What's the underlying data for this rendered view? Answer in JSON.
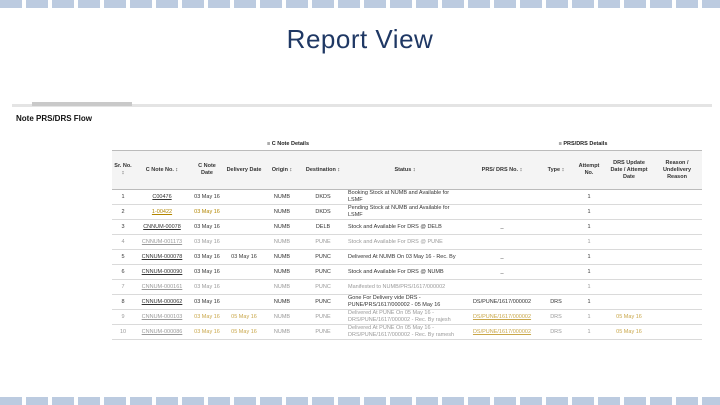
{
  "slide": {
    "title": "Report View"
  },
  "panel": {
    "title": "Note PRS/DRS Flow"
  },
  "groups": {
    "cnote": "C Note Details",
    "prs": "PRS/DRS Details"
  },
  "columns": [
    "Sr. No. ↕",
    "C Note No. ↕",
    "C Note Date",
    "Delivery Date",
    "Origin ↕",
    "Destination ↕",
    "Status ↕",
    "PRS/ DRS No. ↕",
    "Type ↕",
    "Attempt No.",
    "DRS Update Date / Attempt Date",
    "Reason / Undelivery Reason"
  ],
  "rows": [
    {
      "sr": "1",
      "cn": "C00476",
      "cdate": "03 May 16",
      "ddate": "",
      "origin": "NUMB",
      "dest": "DKDS",
      "status": "Booking Stock at NUMB and Available for LSMF",
      "prs": "",
      "type": "",
      "att": "1",
      "upd": "",
      "reason": ""
    },
    {
      "sr": "2",
      "cn": "1-00422",
      "cdate": "03 May 16",
      "ddate": "",
      "origin": "NUMB",
      "dest": "DKDS",
      "status": "Pending Stock at NUMB and Available for LSMF",
      "prs": "",
      "type": "",
      "att": "1",
      "upd": "",
      "reason": ""
    },
    {
      "sr": "3",
      "cn": "CNNUM-00078",
      "cdate": "03 May 16",
      "ddate": "",
      "origin": "NUMB",
      "dest": "DELB",
      "status": "Stock and Available For DRS @ DELB",
      "prs": "_",
      "type": "",
      "att": "1",
      "upd": "",
      "reason": ""
    },
    {
      "sr": "4",
      "cn": "CNNUM-001173",
      "cdate": "03 May 16",
      "ddate": "",
      "origin": "NUMB",
      "dest": "PUNE",
      "status": "Stock and Available For DRS @ PUNE",
      "prs": "",
      "type": "",
      "att": "1",
      "upd": "",
      "reason": ""
    },
    {
      "sr": "5",
      "cn": "CNNUM-000078",
      "cdate": "03 May 16",
      "ddate": "03 May 16",
      "origin": "NUMB",
      "dest": "PUNC",
      "status": "Delivered At NUMB On 03 May 16 - Rec. By",
      "prs": "_",
      "type": "",
      "att": "1",
      "upd": "",
      "reason": ""
    },
    {
      "sr": "6",
      "cn": "CNNUM-000090",
      "cdate": "03 May 16",
      "ddate": "",
      "origin": "NUMB",
      "dest": "PUNC",
      "status": "Stock and Available For DRS @ NUMB",
      "prs": "_",
      "type": "",
      "att": "1",
      "upd": "",
      "reason": ""
    },
    {
      "sr": "7",
      "cn": "CNNUM-000161",
      "cdate": "03 May 16",
      "ddate": "",
      "origin": "NUMB",
      "dest": "PUNC",
      "status": "Manifested to NUMB/PRS/1617/000002",
      "prs": "",
      "type": "",
      "att": "1",
      "upd": "",
      "reason": ""
    },
    {
      "sr": "8",
      "cn": "CNNUM-000062",
      "cdate": "03 May 16",
      "ddate": "",
      "origin": "NUMB",
      "dest": "PUNC",
      "status": "Gone For Delivery vide DRS - PUNE/PRS/1617/000002 - 05 May 16",
      "prs": "DS/PUNE/1617/000002",
      "type": "DRS",
      "att": "1",
      "upd": "",
      "reason": ""
    },
    {
      "sr": "9",
      "cn": "CNNUM-000103",
      "cdate": "03 May 16",
      "ddate": "05 May 16",
      "origin": "NUMB",
      "dest": "PUNE",
      "status": "Delivered At PUNE On 05 May 16 - DRS/PUNE/1617/000002 - Rec. By rajesh",
      "prs": "DS/PUNE/1617/000002",
      "type": "DRS",
      "att": "1",
      "upd": "05 May 16",
      "reason": ""
    },
    {
      "sr": "10",
      "cn": "CNNUM-000086",
      "cdate": "03 May 16",
      "ddate": "05 May 16",
      "origin": "NUMB",
      "dest": "PUNE",
      "status": "Delivered At PUNE On 05 May 16 - DRS/PUNE/1617/000002 - Rec. By ramesh",
      "prs": "DS/PUNE/1617/000002",
      "type": "DRS",
      "att": "1",
      "upd": "05 May 16",
      "reason": ""
    }
  ]
}
